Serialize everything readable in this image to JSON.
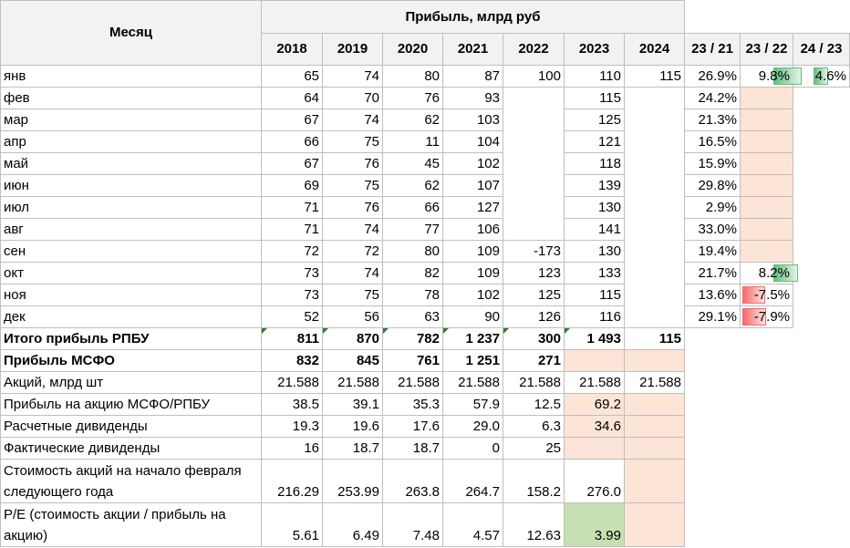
{
  "header": {
    "month": "Месяц",
    "profit_title": "Прибыль, млрд руб"
  },
  "columns": [
    "2018",
    "2019",
    "2020",
    "2021",
    "2022",
    "2023",
    "2024",
    "23 / 21",
    "23 / 22",
    "24 / 23"
  ],
  "months": [
    {
      "m": "янв",
      "v": [
        "65",
        "74",
        "80",
        "87",
        "100",
        "110",
        "115",
        "26.9%",
        "9.8%",
        "4.6%"
      ]
    },
    {
      "m": "фев",
      "v": [
        "64",
        "70",
        "76",
        "93",
        "",
        "115",
        "",
        "24.2%",
        "",
        ""
      ]
    },
    {
      "m": "мар",
      "v": [
        "67",
        "74",
        "62",
        "103",
        "",
        "125",
        "",
        "21.3%",
        "",
        ""
      ]
    },
    {
      "m": "апр",
      "v": [
        "66",
        "75",
        "11",
        "104",
        "",
        "121",
        "",
        "16.5%",
        "",
        ""
      ]
    },
    {
      "m": "май",
      "v": [
        "67",
        "76",
        "45",
        "102",
        "",
        "118",
        "",
        "15.9%",
        "",
        ""
      ]
    },
    {
      "m": "июн",
      "v": [
        "69",
        "75",
        "62",
        "107",
        "",
        "139",
        "",
        "29.8%",
        "",
        ""
      ]
    },
    {
      "m": "июл",
      "v": [
        "71",
        "76",
        "66",
        "127",
        "",
        "130",
        "",
        "2.9%",
        "",
        ""
      ]
    },
    {
      "m": "авг",
      "v": [
        "71",
        "74",
        "77",
        "106",
        "",
        "141",
        "",
        "33.0%",
        "",
        ""
      ]
    },
    {
      "m": "сен",
      "v": [
        "72",
        "72",
        "80",
        "109",
        "-173",
        "130",
        "",
        "19.4%",
        "",
        ""
      ]
    },
    {
      "m": "окт",
      "v": [
        "73",
        "74",
        "82",
        "109",
        "123",
        "133",
        "",
        "21.7%",
        "8.2%",
        ""
      ]
    },
    {
      "m": "ноя",
      "v": [
        "73",
        "75",
        "78",
        "102",
        "125",
        "115",
        "",
        "13.6%",
        "-7.5%",
        ""
      ]
    },
    {
      "m": "дек",
      "v": [
        "52",
        "56",
        "63",
        "90",
        "126",
        "116",
        "",
        "29.1%",
        "-7.9%",
        ""
      ]
    }
  ],
  "summary": [
    {
      "label": "Итого прибыль РПБУ",
      "v": [
        "811",
        "870",
        "782",
        "1 237",
        "300",
        "1 493",
        "115"
      ]
    },
    {
      "label": "Прибыль МСФО",
      "v": [
        "832",
        "845",
        "761",
        "1 251",
        "271",
        "",
        ""
      ]
    },
    {
      "label": "Акций, млрд шт",
      "v": [
        "21.588",
        "21.588",
        "21.588",
        "21.588",
        "21.588",
        "21.588",
        "21.588"
      ]
    },
    {
      "label": "Прибыль на акцию МСФО/РПБУ",
      "v": [
        "38.5",
        "39.1",
        "35.3",
        "57.9",
        "12.5",
        "69.2",
        ""
      ]
    },
    {
      "label": "Расчетные дивиденды",
      "v": [
        "19.3",
        "19.6",
        "17.6",
        "29.0",
        "6.3",
        "34.6",
        ""
      ]
    },
    {
      "label": "Фактические дивиденды",
      "v": [
        "16",
        "18.7",
        "18.7",
        "0",
        "25",
        "",
        ""
      ]
    },
    {
      "label": "Стоимость акций на начало февраля следующего года",
      "v": [
        "216.29",
        "253.99",
        "263.8",
        "264.7",
        "158.2",
        "276.0",
        ""
      ]
    },
    {
      "label": "P/E (стоимость акции / прибыль на акцию)",
      "v": [
        "5.61",
        "6.49",
        "7.48",
        "4.57",
        "12.63",
        "3.99",
        ""
      ]
    }
  ],
  "colors": {
    "peach": "#fce4d6",
    "green": "#c6e0b4",
    "bar_green": "#63be7b",
    "bar_red": "#f8696b"
  },
  "data_bars": {
    "23 / 22": [
      "0.098",
      "",
      "",
      "",
      "",
      "",
      "",
      "",
      "",
      "0.082",
      "-0.075",
      "-0.079"
    ],
    "24 / 23": [
      "0.046",
      "",
      "",
      "",
      "",
      "",
      "",
      "",
      "",
      "",
      "",
      ""
    ]
  }
}
